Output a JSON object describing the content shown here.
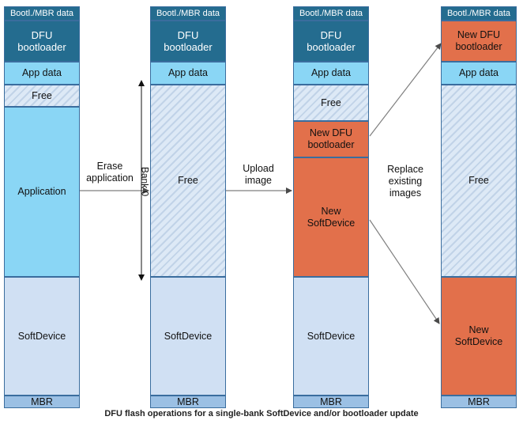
{
  "columns": [
    {
      "id": "original",
      "blocks": [
        {
          "role": "bootl-mbr-data",
          "label": "Bootl./MBR data"
        },
        {
          "role": "dfu-bootloader",
          "label": "DFU\nbootloader"
        },
        {
          "role": "app-data",
          "label": "App data"
        },
        {
          "role": "free",
          "label": "Free"
        },
        {
          "role": "application",
          "label": "Application"
        },
        {
          "role": "softdevice",
          "label": "SoftDevice"
        },
        {
          "role": "mbr",
          "label": "MBR"
        }
      ]
    },
    {
      "id": "erased",
      "blocks": [
        {
          "role": "bootl-mbr-data",
          "label": "Bootl./MBR data"
        },
        {
          "role": "dfu-bootloader",
          "label": "DFU\nbootloader"
        },
        {
          "role": "app-data",
          "label": "App data"
        },
        {
          "role": "free",
          "label": "Free"
        },
        {
          "role": "softdevice",
          "label": "SoftDevice"
        },
        {
          "role": "mbr",
          "label": "MBR"
        }
      ]
    },
    {
      "id": "uploaded",
      "blocks": [
        {
          "role": "bootl-mbr-data",
          "label": "Bootl./MBR data"
        },
        {
          "role": "dfu-bootloader",
          "label": "DFU\nbootloader"
        },
        {
          "role": "app-data",
          "label": "App data"
        },
        {
          "role": "free",
          "label": "Free"
        },
        {
          "role": "new-dfu-bootloader",
          "label": "New DFU\nbootloader"
        },
        {
          "role": "new-softdevice",
          "label": "New\nSoftDevice"
        },
        {
          "role": "softdevice",
          "label": "SoftDevice"
        },
        {
          "role": "mbr",
          "label": "MBR"
        }
      ]
    },
    {
      "id": "final",
      "blocks": [
        {
          "role": "bootl-mbr-data",
          "label": "Bootl./MBR data"
        },
        {
          "role": "new-dfu-bootloader",
          "label": "New DFU\nbootloader"
        },
        {
          "role": "app-data",
          "label": "App data"
        },
        {
          "role": "free",
          "label": "Free"
        },
        {
          "role": "new-softdevice",
          "label": "New\nSoftDevice"
        },
        {
          "role": "mbr",
          "label": "MBR"
        }
      ]
    }
  ],
  "steps": {
    "erase": "Erase\napplication",
    "bank": "Bank 0",
    "upload": "Upload\nimage",
    "replace": "Replace\nexisting\nimages"
  },
  "caption": "DFU flash operations for a single-bank SoftDevice and/or bootloader update",
  "colors": {
    "dark_block": "#246c8f",
    "app_block": "#8ad6f5",
    "free_block": "#dde9f6",
    "softdevice_block": "#d0e0f3",
    "mbr_block": "#9bc0e4",
    "new_image_block": "#e2704b",
    "border": "#3a6d9e",
    "arrow": "#7f7f7f"
  }
}
